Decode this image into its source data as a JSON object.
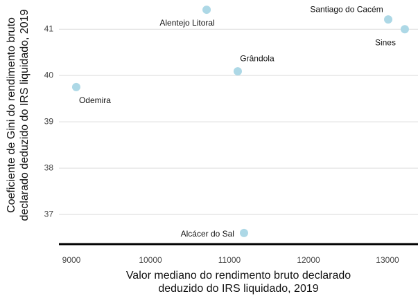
{
  "chart_data": {
    "type": "scatter",
    "xlabel": [
      "Valor mediano do rendimento bruto declarado",
      "deduzido do IRS liquidado, 2019"
    ],
    "ylabel": [
      "Coeficiente de Gini do rendimento bruto",
      "declarado deduzido do IRS liquidado, 2019"
    ],
    "labels": [
      "Alentejo Litoral",
      "Santiago do Cacém",
      "Sines",
      "Grândola",
      "Odemira",
      "Alcácer do Sal"
    ],
    "x": [
      10711,
      13009,
      13219,
      11105,
      9061,
      11184
    ],
    "y": [
      41.42,
      41.21,
      41.0,
      40.09,
      39.75,
      36.6
    ],
    "color": "#add8e6",
    "xlim": [
      8842,
      13386
    ],
    "xticks": [
      9000,
      10000,
      11000,
      12000,
      13000
    ],
    "ylim": [
      36.36,
      41.63
    ],
    "yticks": [
      37,
      38,
      39,
      40,
      41
    ],
    "grid": true
  }
}
